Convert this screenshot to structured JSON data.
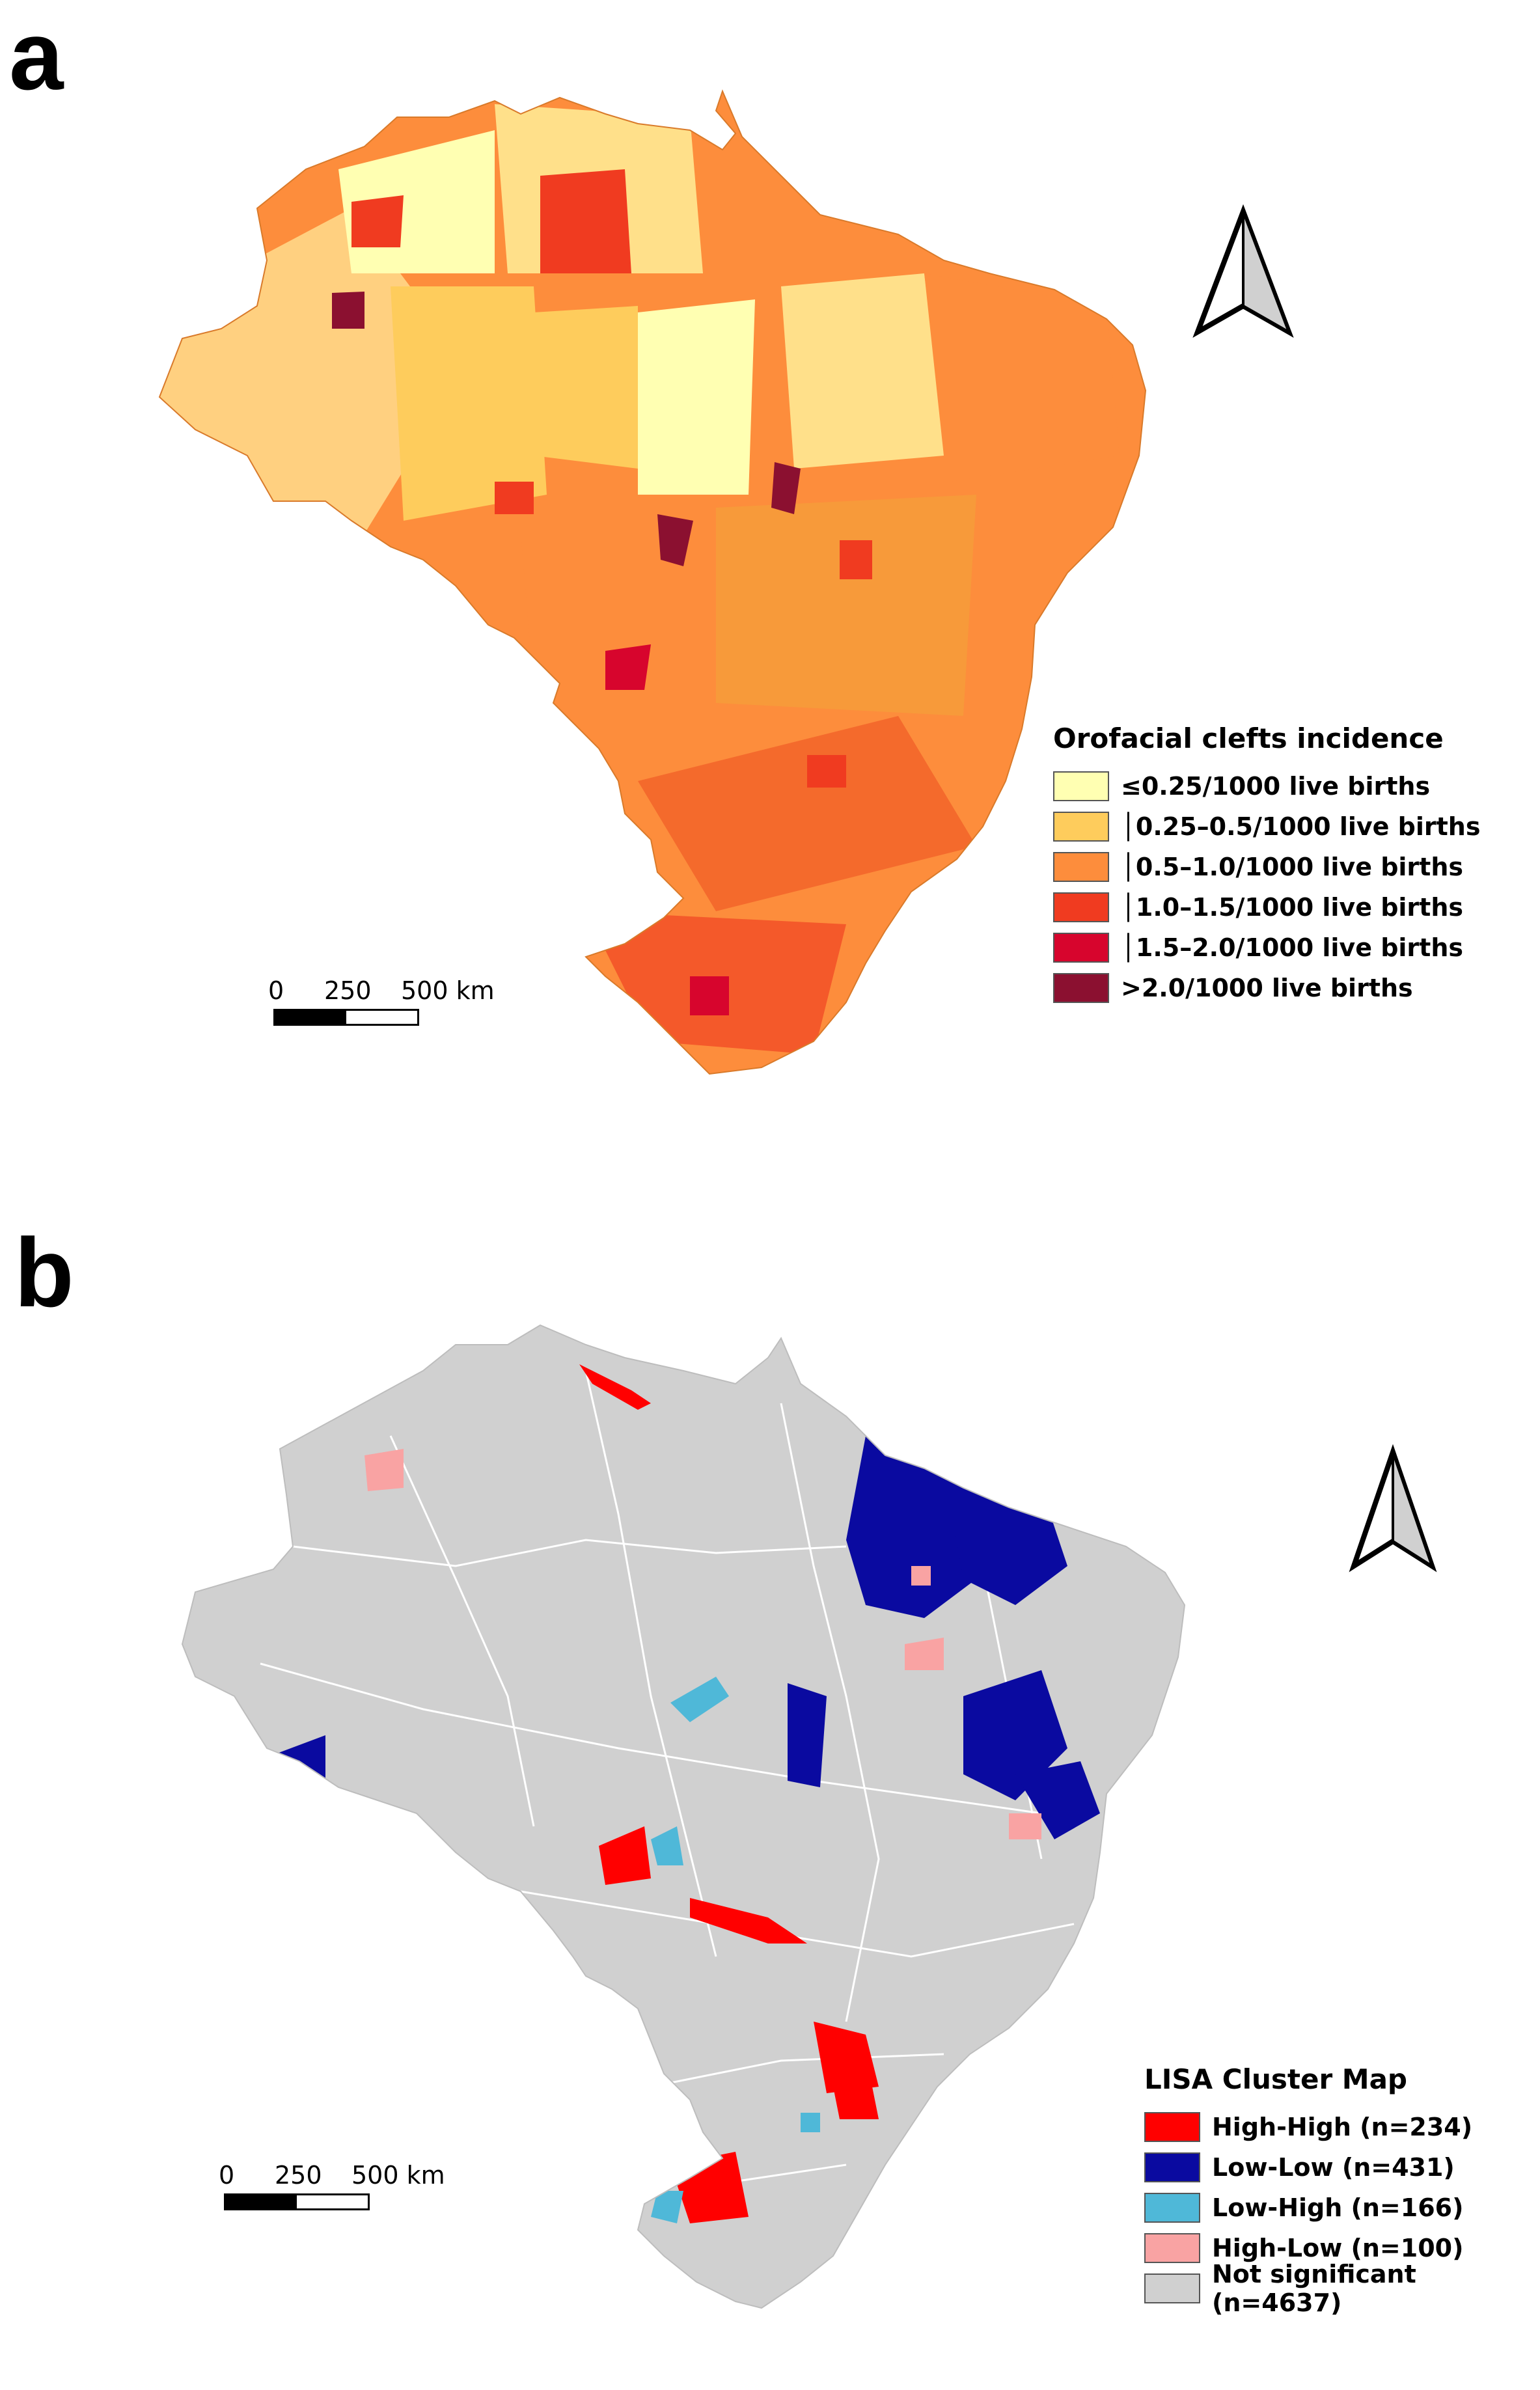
{
  "panels": [
    {
      "letter": "a",
      "legend": {
        "title": "Orofacial clefts incidence",
        "items": [
          {
            "label": "≤0.25/1000 live births",
            "color": "#ffffb2"
          },
          {
            "label": "│0.25–0.5/1000 live births",
            "color": "#fecc5c"
          },
          {
            "label": "│0.5–1.0/1000 live births",
            "color": "#fd8d3c"
          },
          {
            "label": "│1.0–1.5/1000 live births",
            "color": "#f03b20"
          },
          {
            "label": "│1.5–2.0/1000 live births",
            "color": "#d7052d"
          },
          {
            "label": ">2.0/1000 live births",
            "color": "#8b1030"
          }
        ]
      },
      "scale_bar": {
        "ticks": [
          "0",
          "250",
          "500 km"
        ]
      },
      "north_arrow": "north-arrow-icon"
    },
    {
      "letter": "b",
      "legend": {
        "title": "LISA Cluster Map",
        "items": [
          {
            "label": "High-High (n=234)",
            "color": "#ff0000"
          },
          {
            "label": "Low-Low (n=431)",
            "color": "#0a0aa0"
          },
          {
            "label": "Low-High (n=166)",
            "color": "#4fb8d8"
          },
          {
            "label": "High-Low (n=100)",
            "color": "#f9a3a3"
          },
          {
            "label": "Not significant (n=4637)",
            "color": "#d0d0d0"
          }
        ]
      },
      "scale_bar": {
        "ticks": [
          "0",
          "250",
          "500 km"
        ]
      },
      "north_arrow": "north-arrow-icon"
    }
  ]
}
